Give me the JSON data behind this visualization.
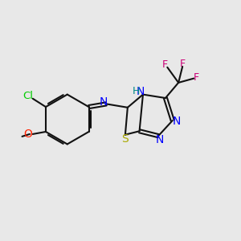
{
  "bg_color": "#e8e8e8",
  "fig_size": [
    3.0,
    3.0
  ],
  "dpi": 100,
  "line_color": "#111111",
  "line_width": 1.5,
  "colors": {
    "Cl": "#00cc00",
    "O": "#ff2200",
    "N": "#0000ff",
    "H": "#008888",
    "S": "#aaaa00",
    "F": "#cc0077",
    "C": "#111111"
  }
}
